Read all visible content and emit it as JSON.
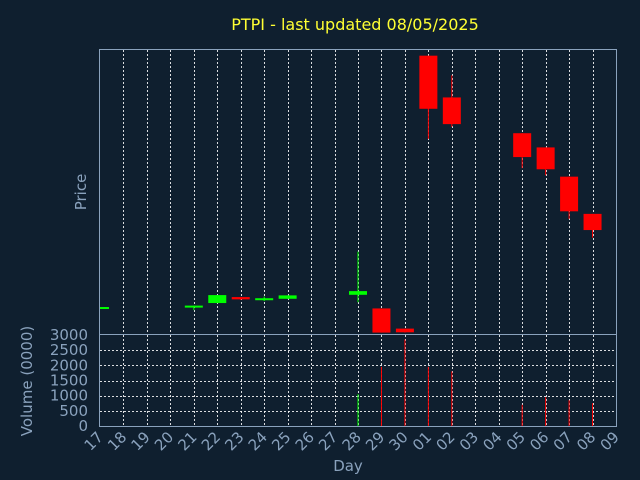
{
  "chart_data": {
    "type": "candlestick",
    "title": "PTPI - last updated 08/05/2025",
    "price_panel": {
      "ylabel": "Price",
      "ylim": [
        0,
        100
      ]
    },
    "volume_panel": {
      "ylabel": "Volume (0000)",
      "ylim": [
        0,
        3000
      ],
      "yticks": [
        "0",
        "500",
        "1000",
        "1500",
        "2000",
        "2500",
        "3000"
      ]
    },
    "xlabel": "Day",
    "xticks": [
      "17",
      "18",
      "19",
      "20",
      "21",
      "22",
      "23",
      "24",
      "25",
      "26",
      "27",
      "28",
      "29",
      "30",
      "01",
      "02",
      "03",
      "04",
      "05",
      "06",
      "07",
      "08",
      "09"
    ],
    "candles": [
      {
        "day": "17",
        "open": 9.5,
        "high": 9.5,
        "low": 9.5,
        "close": 9.5,
        "volume": 0
      },
      {
        "day": "21",
        "open": 9.5,
        "high": 10.0,
        "low": 8.4,
        "close": 10.0,
        "volume": 0
      },
      {
        "day": "22",
        "open": 10.9,
        "high": 13.7,
        "low": 10.9,
        "close": 13.7,
        "volume": 0
      },
      {
        "day": "23",
        "open": 13.0,
        "high": 13.0,
        "low": 12.0,
        "close": 12.2,
        "volume": 0
      },
      {
        "day": "24",
        "open": 12.3,
        "high": 13.2,
        "low": 11.6,
        "close": 12.6,
        "volume": 0
      },
      {
        "day": "25",
        "open": 12.4,
        "high": 13.6,
        "low": 12.4,
        "close": 13.6,
        "volume": 0
      },
      {
        "day": "28",
        "open": 13.8,
        "high": 29.0,
        "low": 11.2,
        "close": 15.1,
        "volume": 1050
      },
      {
        "day": "29",
        "open": 9.0,
        "high": 9.0,
        "low": 0.5,
        "close": 0.5,
        "volume": 1950
      },
      {
        "day": "30",
        "open": 1.9,
        "high": 1.9,
        "low": 0.5,
        "close": 0.6,
        "volume": 2850
      },
      {
        "day": "01",
        "open": 98.0,
        "high": 98.0,
        "low": 68.7,
        "close": 79.3,
        "volume": 1950
      },
      {
        "day": "02",
        "open": 83.3,
        "high": 91.1,
        "low": 72.9,
        "close": 73.9,
        "volume": 1800
      },
      {
        "day": "05",
        "open": 70.7,
        "high": 70.7,
        "low": 58.4,
        "close": 62.3,
        "volume": 700
      },
      {
        "day": "06",
        "open": 65.7,
        "high": 65.7,
        "low": 55.9,
        "close": 58.0,
        "volume": 950
      },
      {
        "day": "07",
        "open": 55.4,
        "high": 55.4,
        "low": 40.5,
        "close": 43.2,
        "volume": 850
      },
      {
        "day": "08",
        "open": 42.3,
        "high": 42.3,
        "low": 33.9,
        "close": 36.6,
        "volume": 750
      }
    ],
    "colors": {
      "up": "#00ff00",
      "down": "#ff0000",
      "background": "#0f1f2f",
      "title": "#ffff33",
      "axis": "#8aa2bd",
      "grid": "#ffffff"
    },
    "grid": true
  }
}
